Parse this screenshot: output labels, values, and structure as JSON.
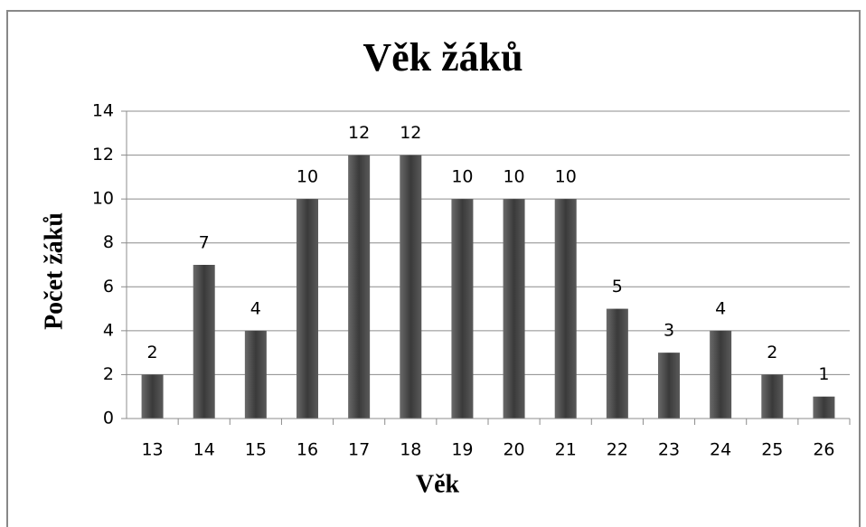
{
  "chart_data": {
    "type": "bar",
    "title": "Věk žáků",
    "x_label": "Věk",
    "y_label": "Počet žáků",
    "categories": [
      "13",
      "14",
      "15",
      "16",
      "17",
      "18",
      "19",
      "20",
      "21",
      "22",
      "23",
      "24",
      "25",
      "26"
    ],
    "values": [
      2,
      7,
      4,
      10,
      12,
      12,
      10,
      10,
      10,
      5,
      3,
      4,
      2,
      1
    ],
    "color": "#4d4d4d",
    "ylim": [
      0,
      14
    ],
    "yticks": [
      0,
      2,
      4,
      6,
      8,
      10,
      12,
      14
    ],
    "grid": true
  }
}
